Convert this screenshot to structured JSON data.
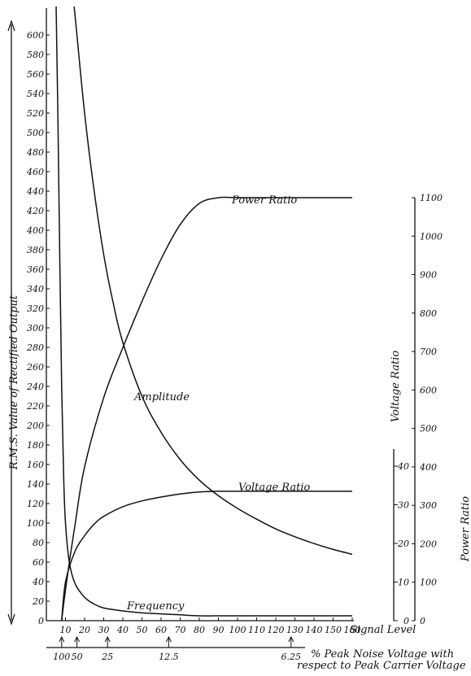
{
  "chart_data": {
    "type": "line",
    "xlabel": "Signal Level",
    "xlim": [
      0,
      160
    ],
    "x_ticks": [
      10,
      20,
      30,
      40,
      50,
      60,
      70,
      80,
      90,
      100,
      110,
      120,
      130,
      140,
      150,
      160
    ],
    "ylabel_left": "R.M.S. Value of Rectified Output",
    "ylim_left": [
      0,
      600
    ],
    "y_ticks_left": [
      0,
      20,
      40,
      60,
      80,
      100,
      120,
      140,
      160,
      180,
      200,
      220,
      240,
      260,
      280,
      300,
      320,
      340,
      360,
      380,
      400,
      420,
      440,
      460,
      480,
      500,
      520,
      540,
      560,
      580,
      600
    ],
    "ylabel_power": "Power Ratio",
    "ylim_power": [
      0,
      1100
    ],
    "y_ticks_power": [
      0,
      100,
      200,
      300,
      400,
      500,
      600,
      700,
      800,
      900,
      1000,
      1100
    ],
    "ylabel_voltage": "Voltage Ratio",
    "ylim_voltage": [
      0,
      45
    ],
    "y_ticks_voltage": [
      0,
      10,
      20,
      30,
      40
    ],
    "secondary_xlabel": "% Peak Noise Voltage with respect to Peak Carrier Voltage",
    "secondary_x_ticks": [
      {
        "at": 8,
        "label": "100"
      },
      {
        "at": 16,
        "label": "50"
      },
      {
        "at": 32,
        "label": "25"
      },
      {
        "at": 64,
        "label": "12.5"
      },
      {
        "at": 128,
        "label": "6.25"
      }
    ],
    "series": [
      {
        "name": "Power Ratio",
        "axis": "power",
        "x": [
          8,
          10,
          15,
          20,
          30,
          40,
          50,
          60,
          70,
          80,
          90,
          100,
          120,
          140,
          160
        ],
        "values": [
          0,
          80,
          250,
          400,
          580,
          710,
          830,
          940,
          1030,
          1085,
          1100,
          1100,
          1100,
          1100,
          1100
        ]
      },
      {
        "name": "Voltage Ratio",
        "axis": "voltage",
        "x": [
          8,
          10,
          15,
          20,
          25,
          30,
          40,
          50,
          60,
          70,
          80,
          90,
          100,
          120,
          140,
          160
        ],
        "values": [
          0,
          10,
          18,
          22,
          25,
          27,
          29.5,
          31,
          32,
          32.8,
          33.3,
          33.5,
          33.5,
          33.5,
          33.5,
          33.5
        ]
      },
      {
        "name": "Amplitude",
        "axis": "left",
        "x": [
          14,
          16,
          20,
          25,
          30,
          35,
          40,
          50,
          60,
          70,
          80,
          90,
          100,
          110,
          120,
          130,
          140,
          150,
          160
        ],
        "values": [
          640,
          600,
          520,
          440,
          375,
          325,
          285,
          230,
          193,
          165,
          144,
          128,
          115,
          104,
          94,
          86,
          79,
          73,
          68
        ]
      },
      {
        "name": "Frequency",
        "axis": "left",
        "x": [
          5,
          6,
          7,
          8,
          9,
          10,
          12,
          15,
          20,
          25,
          30,
          40,
          50,
          60,
          70,
          80,
          100,
          160
        ],
        "values": [
          640,
          520,
          370,
          240,
          150,
          100,
          60,
          38,
          24,
          17,
          13,
          10,
          8,
          7,
          6,
          5,
          5,
          5
        ]
      }
    ],
    "annotations": [
      "Power Ratio",
      "Amplitude",
      "Voltage Ratio",
      "Frequency"
    ],
    "legend": "none",
    "grid": false
  }
}
